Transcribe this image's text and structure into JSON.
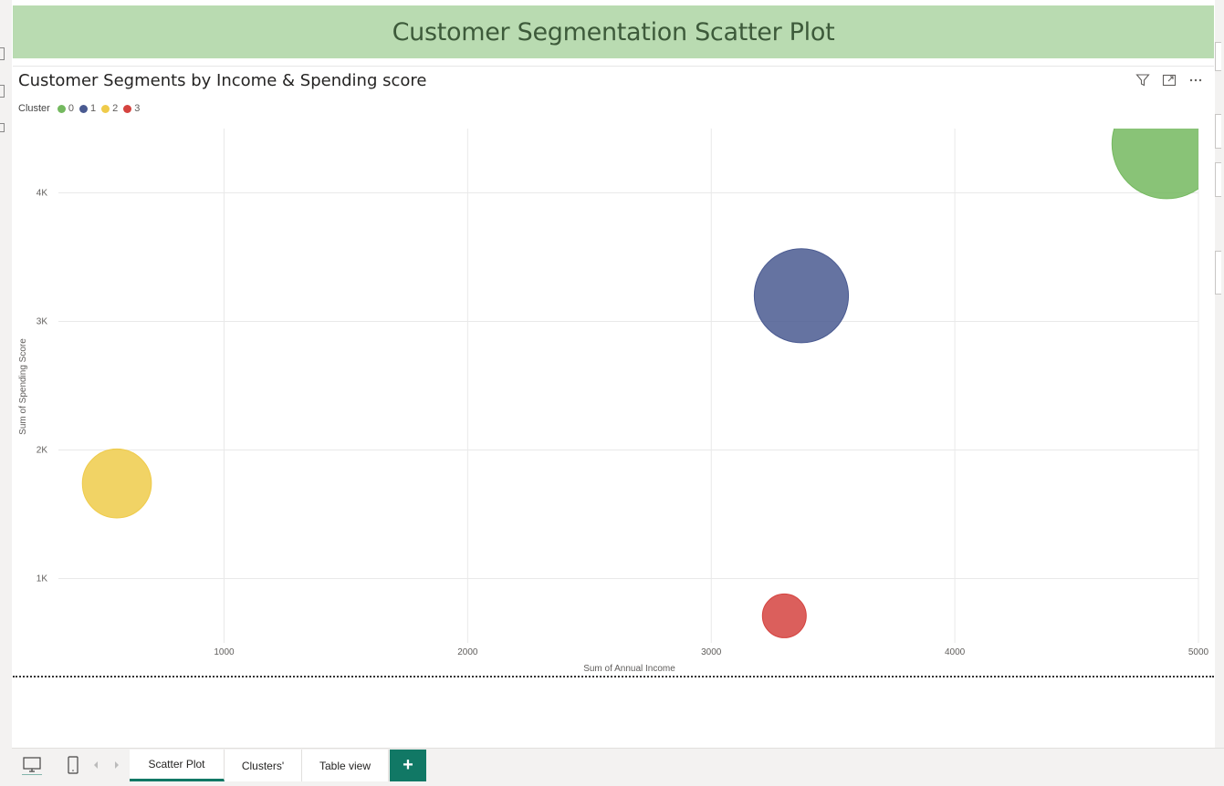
{
  "page": {
    "banner_title": "Customer Segmentation Scatter Plot"
  },
  "visual": {
    "title": "Customer Segments by Income & Spending score",
    "legend_title": "Cluster",
    "icons": [
      "filter-icon",
      "focus-mode-icon",
      "more-options-icon"
    ]
  },
  "chart_data": {
    "type": "scatter",
    "title": "Customer Segments by Income & Spending score",
    "xlabel": "Sum of Annual Income",
    "ylabel": "Sum of Spending Score",
    "xlim": [
      320,
      5000
    ],
    "ylim": [
      500,
      4500
    ],
    "x_ticks": [
      1000,
      2000,
      3000,
      4000,
      5000
    ],
    "x_tick_labels": [
      "1000",
      "2000",
      "3000",
      "4000",
      "5000"
    ],
    "y_ticks": [
      1000,
      2000,
      3000,
      4000
    ],
    "y_tick_labels": [
      "1K",
      "2K",
      "3K",
      "4K"
    ],
    "grid": true,
    "legend": "top-left",
    "series": [
      {
        "name": "0",
        "color": "#74b95f",
        "x": 4870,
        "y": 4380,
        "size": 1.0
      },
      {
        "name": "1",
        "color": "#4a5a91",
        "x": 3370,
        "y": 3200,
        "size": 0.86
      },
      {
        "name": "2",
        "color": "#efcb4a",
        "x": 560,
        "y": 1740,
        "size": 0.63
      },
      {
        "name": "3",
        "color": "#d5433f",
        "x": 3300,
        "y": 710,
        "size": 0.4
      }
    ]
  },
  "tabs": {
    "items": [
      {
        "label": "Scatter Plot",
        "active": true
      },
      {
        "label": "Clusters'",
        "active": false
      },
      {
        "label": "Table view",
        "active": false
      }
    ],
    "add_label": "+"
  }
}
